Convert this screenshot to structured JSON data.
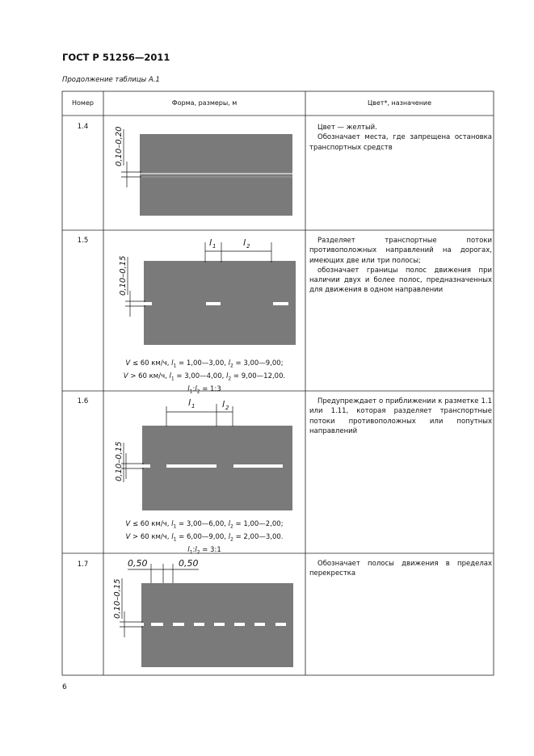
{
  "header": {
    "title": "ГОСТ Р 51256—2011",
    "subtitle": "Продолжение таблицы А.1"
  },
  "table": {
    "columns": [
      "Номер",
      "Форма, размеры, м",
      "Цвет*, назначение"
    ],
    "rows": [
      {
        "number": "1.4",
        "dimensions": [
          "0,10–0,20"
        ],
        "formula": [],
        "description": [
          "Цвет — желтый.",
          "Обозначает места, где запрещена остановка транспортных средств"
        ]
      },
      {
        "number": "1.5",
        "dimensions": [
          "0,10–0,15",
          "l",
          "1",
          "l",
          "2"
        ],
        "formula": [
          [
            {
              "text": "V",
              "style": "italic"
            },
            {
              "text": " ≤ 60 км/ч, "
            },
            {
              "text": "l",
              "style": "italic"
            },
            {
              "text": "1",
              "style": "sub"
            },
            {
              "text": " = 1,00—3,00, "
            },
            {
              "text": "l",
              "style": "italic"
            },
            {
              "text": "2",
              "style": "sub"
            },
            {
              "text": " = 3,00—9,00;"
            }
          ],
          [
            {
              "text": "V",
              "style": "italic"
            },
            {
              "text": " > 60 км/ч, "
            },
            {
              "text": "l",
              "style": "italic"
            },
            {
              "text": "1",
              "style": "sub"
            },
            {
              "text": " = 3,00—4,00, "
            },
            {
              "text": "l",
              "style": "italic"
            },
            {
              "text": "2",
              "style": "sub"
            },
            {
              "text": " = 9,00—12,00."
            }
          ],
          [
            {
              "text": "l",
              "style": "italic"
            },
            {
              "text": "1",
              "style": "sub"
            },
            {
              "text": ":"
            },
            {
              "text": "l",
              "style": "italic"
            },
            {
              "text": "2",
              "style": "sub"
            },
            {
              "text": " = 1:3"
            }
          ]
        ],
        "description": [
          "Разделяет транспортные потоки противоположных направлений на дорогах, имеющих две или три полосы;",
          "обозначает границы полос движения при наличии двух и более полос, предназначенных для движения в одном направлении"
        ]
      },
      {
        "number": "1.6",
        "dimensions": [
          "0,10–0,15",
          "l",
          "1",
          "l",
          "2"
        ],
        "formula": [
          [
            {
              "text": "V",
              "style": "italic"
            },
            {
              "text": " ≤ 60 км/ч, "
            },
            {
              "text": "l",
              "style": "italic"
            },
            {
              "text": "1",
              "style": "sub"
            },
            {
              "text": " = 3,00—6,00, "
            },
            {
              "text": "l",
              "style": "italic"
            },
            {
              "text": "2",
              "style": "sub"
            },
            {
              "text": " = 1,00—2,00;"
            }
          ],
          [
            {
              "text": "V",
              "style": "italic"
            },
            {
              "text": " > 60 км/ч, "
            },
            {
              "text": "l",
              "style": "italic"
            },
            {
              "text": "1",
              "style": "sub"
            },
            {
              "text": " = 6,00—9,00, "
            },
            {
              "text": "l",
              "style": "italic"
            },
            {
              "text": "2",
              "style": "sub"
            },
            {
              "text": " = 2,00—3,00."
            }
          ],
          [
            {
              "text": "l",
              "style": "italic"
            },
            {
              "text": "1",
              "style": "sub"
            },
            {
              "text": ":"
            },
            {
              "text": "l",
              "style": "italic"
            },
            {
              "text": "2",
              "style": "sub"
            },
            {
              "text": " = 3:1"
            }
          ]
        ],
        "description": [
          "Предупреждает о приближении к разметке 1.1 или 1.11, которая разделяет транспортные потоки противоположных или попутных направлений"
        ]
      },
      {
        "number": "1.7",
        "dimensions": [
          "0,10–0,15",
          "0,50",
          "0,50"
        ],
        "formula": [],
        "description": [
          "Обозначает полосы движения в пределах перекрестка"
        ]
      }
    ]
  },
  "page_number": "6"
}
